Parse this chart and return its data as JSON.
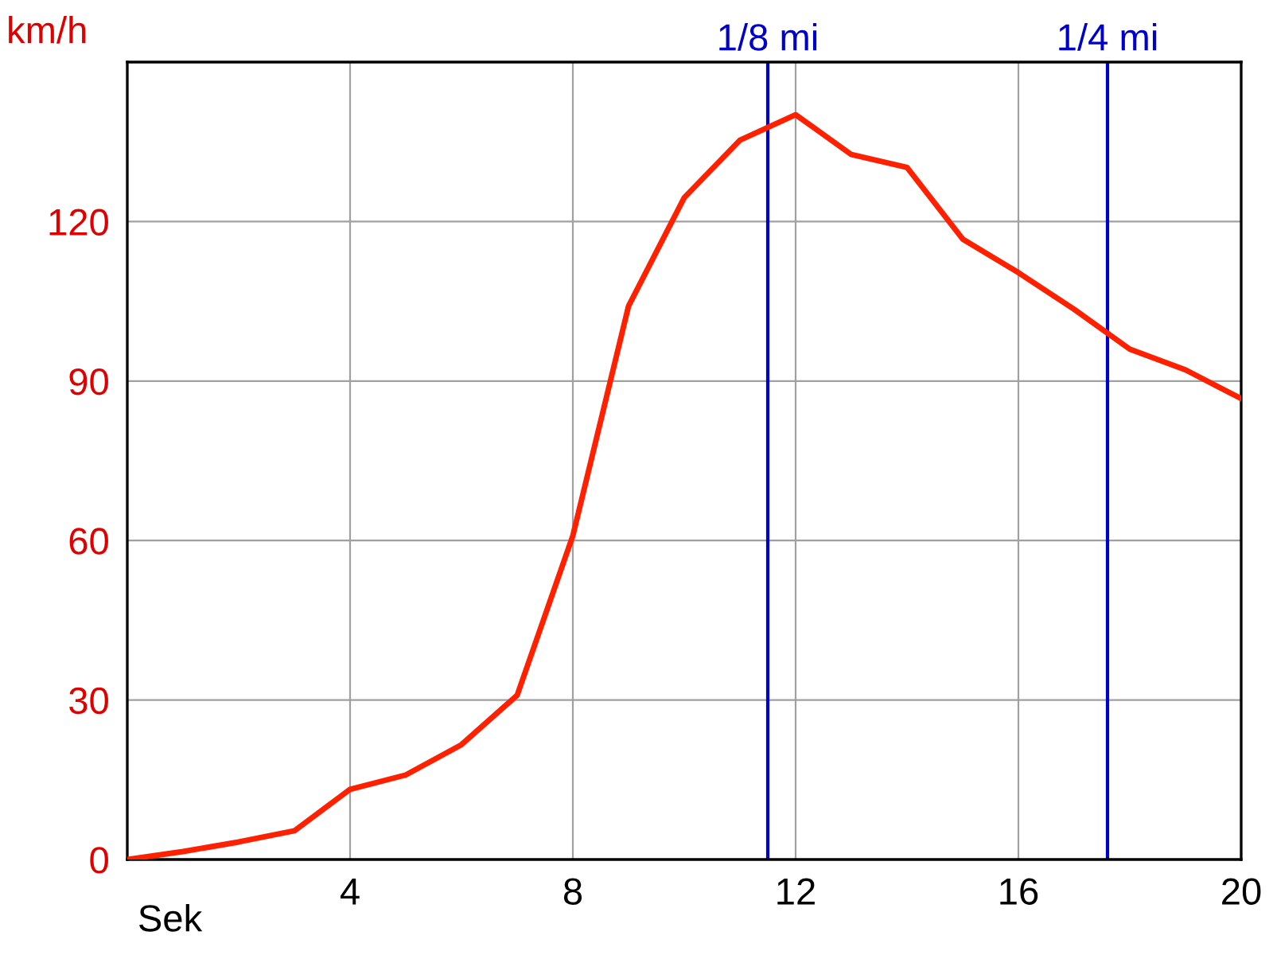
{
  "chart_data": {
    "type": "line",
    "xlabel": "Sek",
    "ylabel": "km/h",
    "x": [
      0,
      1,
      2,
      3,
      4,
      5,
      6,
      7,
      8,
      9,
      10,
      11,
      12,
      13,
      14,
      15,
      16,
      17,
      18,
      19,
      20
    ],
    "series": [
      {
        "color": "#ff2000",
        "values": [
          0,
          1.5,
          3.3,
          5.4,
          13.2,
          15.9,
          21.6,
          30.9,
          60.9,
          104.1,
          124.5,
          135.3,
          140.1,
          132.6,
          130.2,
          116.7,
          110.4,
          103.5,
          96,
          92.1,
          86.7
        ]
      }
    ],
    "xlim": [
      0,
      20
    ],
    "xticks": [
      4,
      8,
      12,
      16,
      20
    ],
    "ylim": [
      0,
      150
    ],
    "yticks": [
      0,
      30,
      60,
      90,
      120
    ],
    "ref_lines": [
      {
        "axis": "x",
        "value": 11.5,
        "label": "1/8 mi",
        "color": "#0000cc"
      },
      {
        "axis": "x",
        "value": 17.6,
        "label": "1/4 mi",
        "color": "#0000cc"
      }
    ],
    "grid": true,
    "legend": false,
    "marker": "none",
    "line_style": "solid"
  }
}
